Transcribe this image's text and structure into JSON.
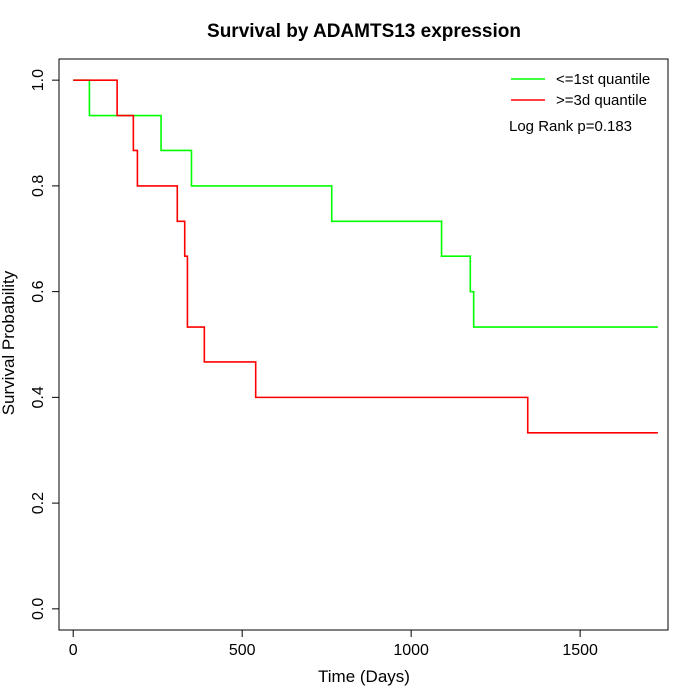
{
  "chart_data": {
    "type": "line",
    "title": "Survival by ADAMTS13 expression",
    "xlabel": "Time (Days)",
    "ylabel": "Survival Probability",
    "xlim": [
      -42,
      1760
    ],
    "ylim": [
      -0.04,
      1.04
    ],
    "x_ticks": [
      0,
      500,
      1000,
      1500
    ],
    "y_ticks": [
      0.0,
      0.2,
      0.4,
      0.6,
      0.8,
      1.0
    ],
    "y_tick_labels": [
      "0.0",
      "0.2",
      "0.4",
      "0.6",
      "0.8",
      "1.0"
    ],
    "grid": false,
    "legend_position": "top-right",
    "annotation": "Log Rank p=0.183",
    "series": [
      {
        "name": "<=1st quantile",
        "color": "#00ff00",
        "step": true,
        "x": [
          0,
          48,
          260,
          350,
          765,
          1090,
          1175,
          1185,
          1730
        ],
        "y": [
          1.0,
          0.933,
          0.867,
          0.8,
          0.733,
          0.667,
          0.6,
          0.533,
          0.533
        ]
      },
      {
        "name": ">=3d quantile",
        "color": "#ff0000",
        "step": true,
        "x": [
          0,
          130,
          178,
          190,
          308,
          330,
          338,
          388,
          540,
          1345,
          1730
        ],
        "y": [
          1.0,
          0.933,
          0.867,
          0.8,
          0.733,
          0.667,
          0.533,
          0.467,
          0.4,
          0.333,
          0.333
        ]
      }
    ]
  }
}
